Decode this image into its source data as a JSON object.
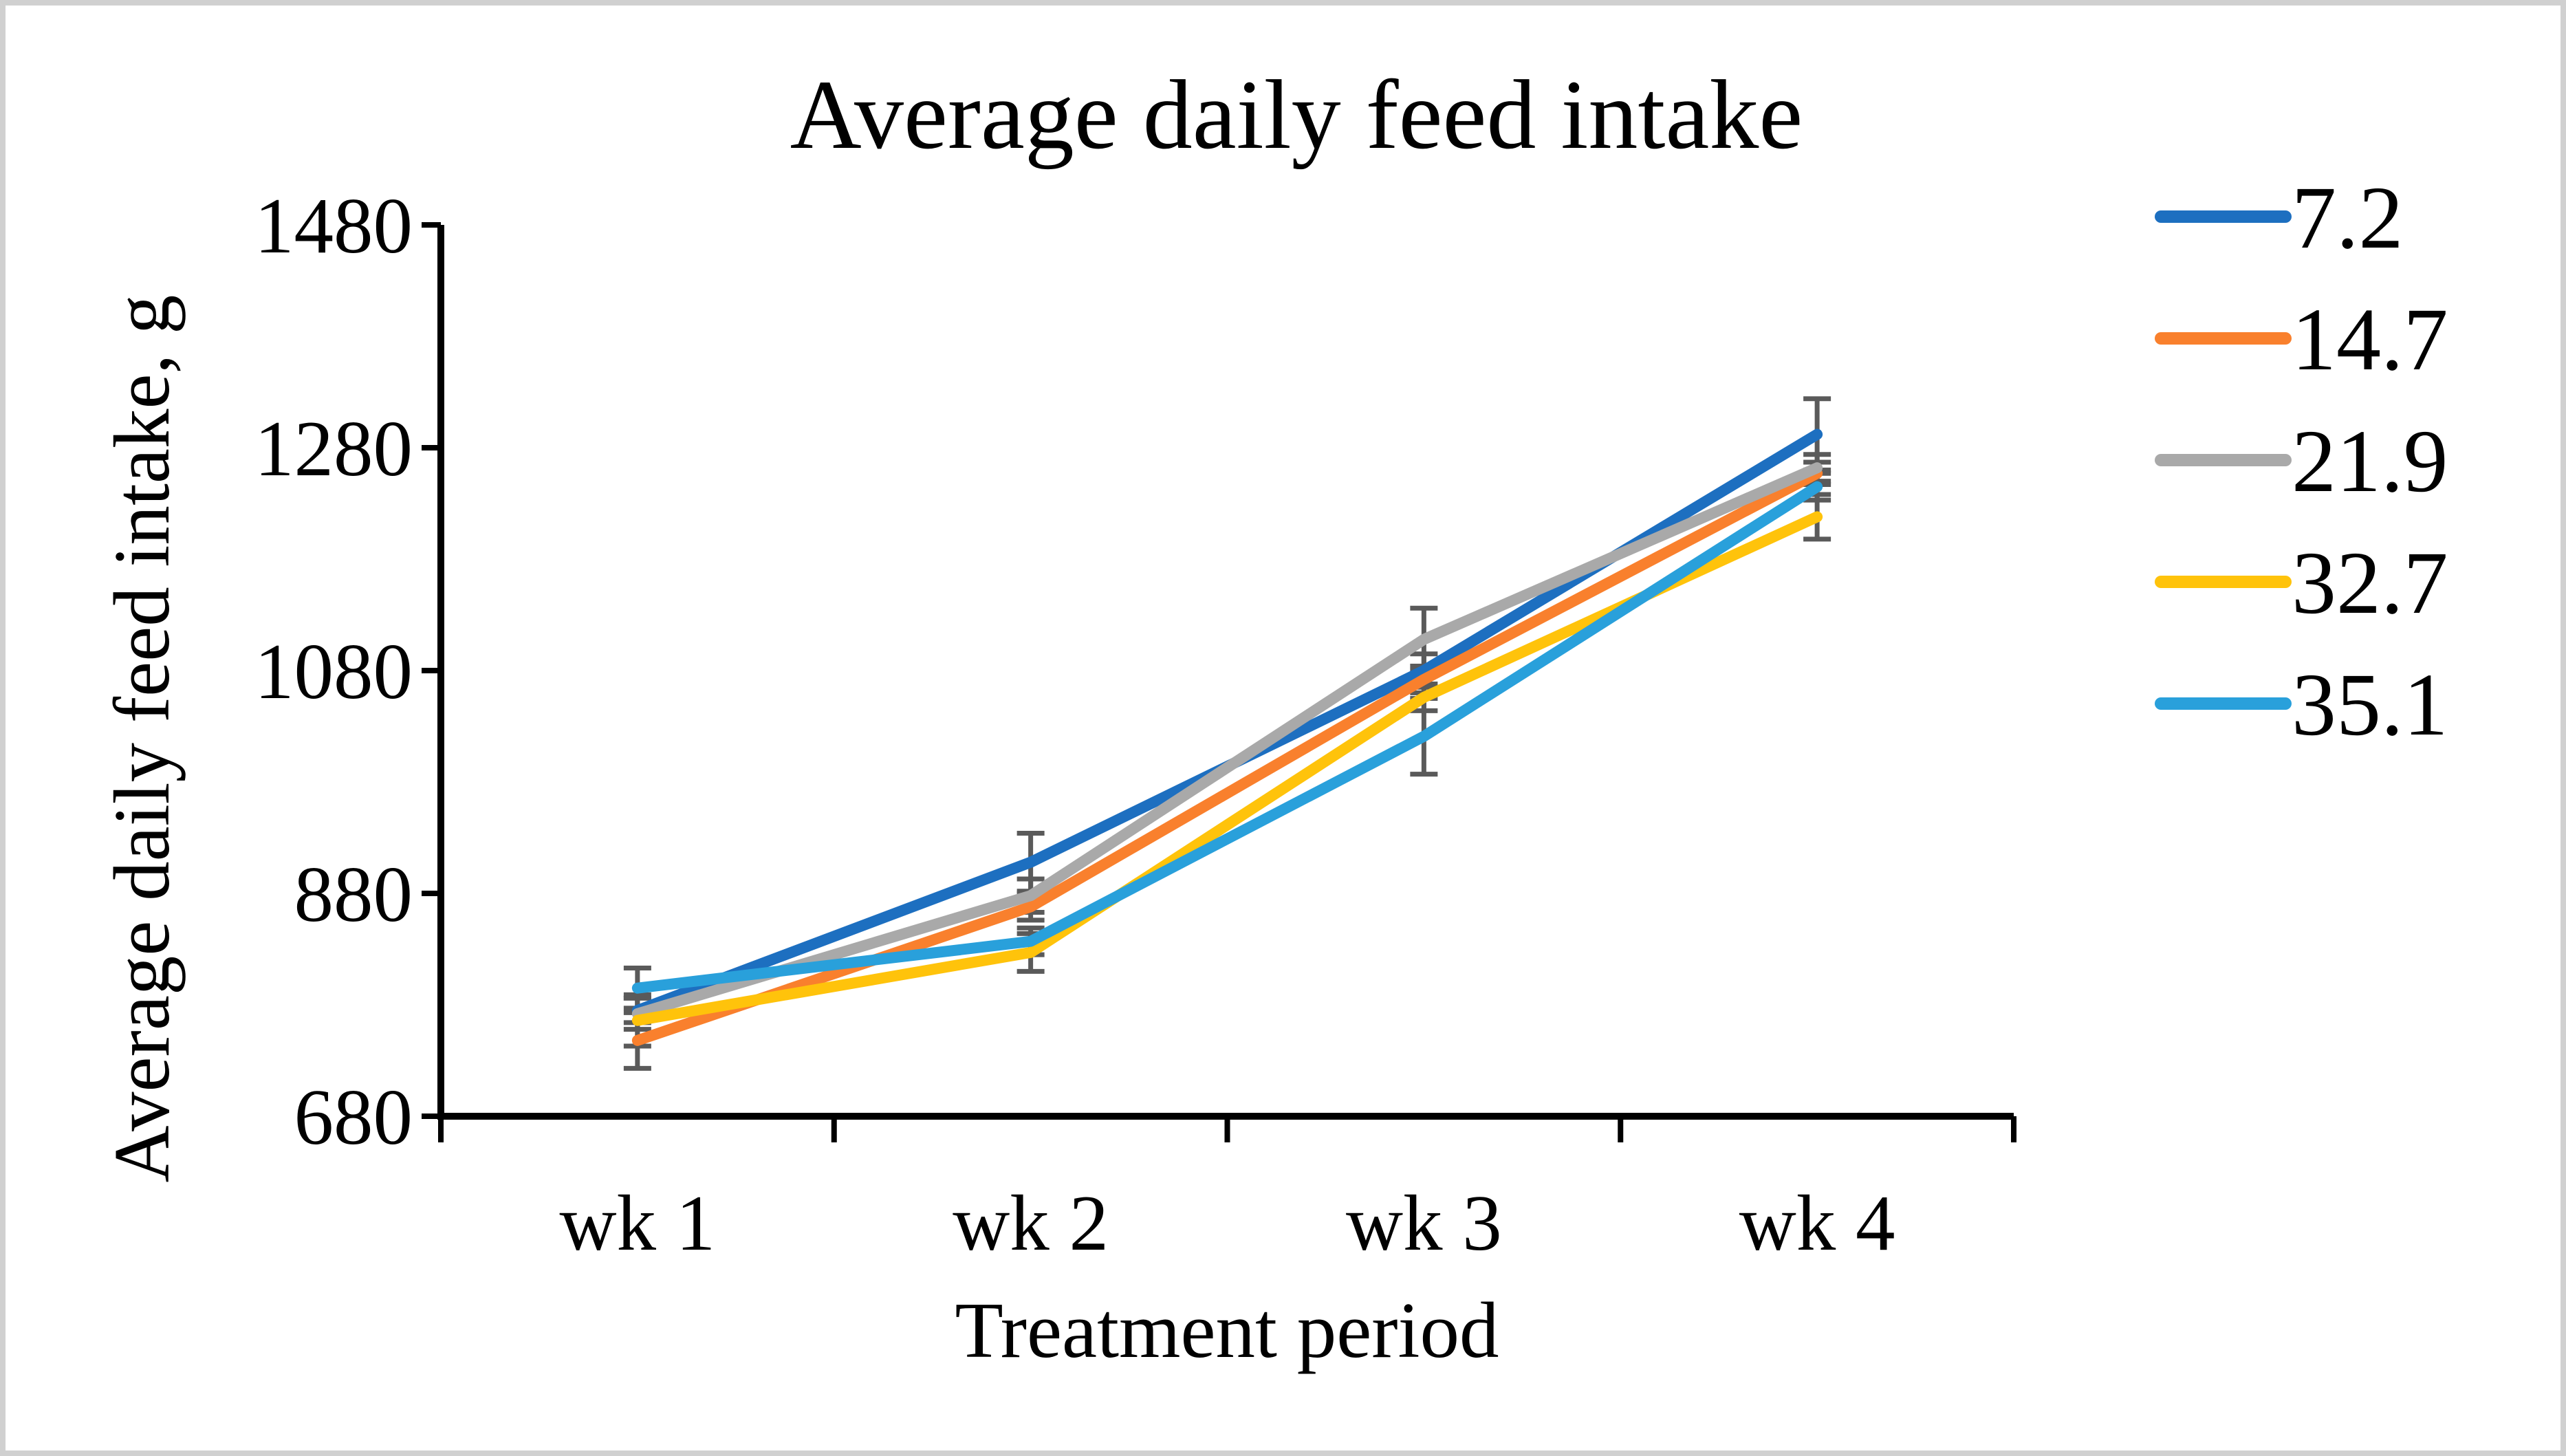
{
  "page": {
    "background": "#ffffff",
    "border_color": "#d0d0d0"
  },
  "chart_data": {
    "type": "line",
    "title": "Average daily feed intake",
    "xlabel": "Treatment period",
    "ylabel": "Average daily feed intake, g",
    "categories": [
      "wk 1",
      "wk 2",
      "wk 3",
      "wk 4"
    ],
    "y_axis": {
      "min": 680,
      "max": 1480,
      "step": 200,
      "tick_labels": [
        "680",
        "880",
        "1080",
        "1280",
        "1480"
      ]
    },
    "grid": false,
    "legend_position": "right",
    "axis_color": "#000000",
    "error_bar_color": "#5a5a5a",
    "series": [
      {
        "name": "7.2",
        "color": "#1d6fc0",
        "values": [
          775,
          908,
          1080,
          1292
        ],
        "error": [
          11,
          26,
          15,
          32
        ]
      },
      {
        "name": "14.7",
        "color": "#f9802d",
        "values": [
          748,
          868,
          1072,
          1257
        ],
        "error": [
          25,
          12,
          12,
          10
        ]
      },
      {
        "name": "21.9",
        "color": "#a9a9a9",
        "values": [
          772,
          878,
          1108,
          1262
        ],
        "error": [
          14,
          15,
          28,
          12
        ]
      },
      {
        "name": "32.7",
        "color": "#ffc30b",
        "values": [
          766,
          827,
          1056,
          1218
        ],
        "error": [
          23,
          17,
          12,
          20
        ]
      },
      {
        "name": "35.1",
        "color": "#29a0db",
        "values": [
          795,
          837,
          1021,
          1245
        ],
        "error": [
          18,
          12,
          34,
          12
        ]
      }
    ]
  }
}
